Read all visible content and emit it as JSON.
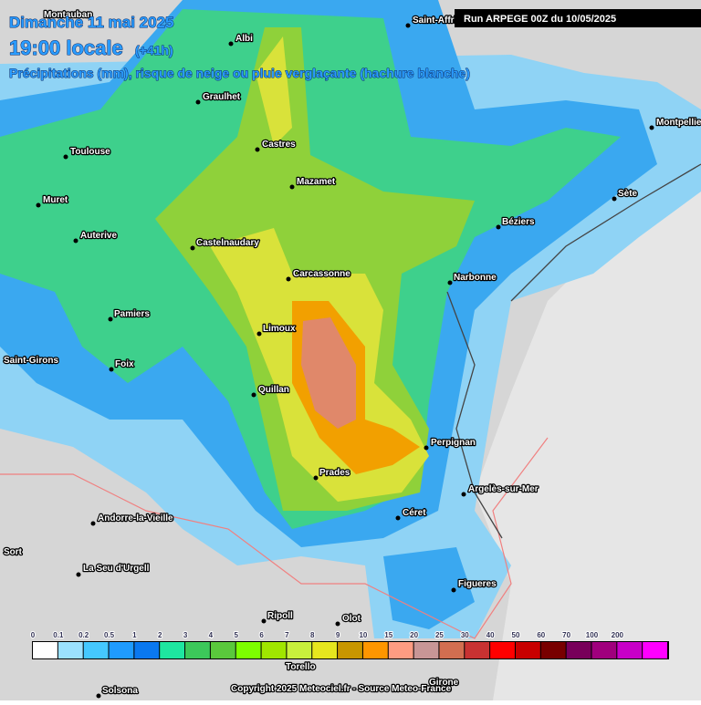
{
  "header": {
    "date": "Dimanche 11 mai 2025",
    "time": "19:00 locale",
    "lead": "(+41h)",
    "subtitle": "Précipitations (mm), risque de neige ou pluie verglaçante (hachure blanche)",
    "run": "Run ARPEGE 00Z du 10/05/2025"
  },
  "cities": [
    "Montauban",
    "Albi",
    "Saint-Affrique",
    "Graulhet",
    "Toulouse",
    "Castres",
    "Mazamet",
    "Montpellier",
    "Muret",
    "Sète",
    "Béziers",
    "Auterive",
    "Castelnaudary",
    "Carcassonne",
    "Narbonne",
    "Pamiers",
    "Limoux",
    "Saint-Girons",
    "Foix",
    "Quillan",
    "Perpignan",
    "Prades",
    "Argelès-sur-Mer",
    "Céret",
    "Andorre-la-Vieille",
    "Sort",
    "La Seu d'Urgell",
    "Figueres",
    "Ripoll",
    "Olot",
    "Torello",
    "Solsona",
    "Girone"
  ],
  "legend": {
    "labels": [
      "0",
      "0.1",
      "0.2",
      "0.5",
      "1",
      "2",
      "3",
      "4",
      "5",
      "6",
      "7",
      "8",
      "9",
      "10",
      "15",
      "20",
      "25",
      "30",
      "40",
      "50",
      "60",
      "70",
      "100",
      "200"
    ],
    "colors": [
      "#ffffff",
      "#9be1ff",
      "#45c8ff",
      "#1f9bff",
      "#0a78f0",
      "#1ee6a0",
      "#3cc85a",
      "#5ac83c",
      "#7dff00",
      "#a0e600",
      "#c8f03c",
      "#e6e61e",
      "#c89600",
      "#ff9600",
      "#ff9c82",
      "#c89696",
      "#d26e50",
      "#c83232",
      "#ff0000",
      "#c80000",
      "#780000",
      "#78005a",
      "#a0007d",
      "#c800c8",
      "#ff00ff"
    ]
  },
  "footer": "Copyright 2025 Meteociel.fr - Source Meteo-France"
}
